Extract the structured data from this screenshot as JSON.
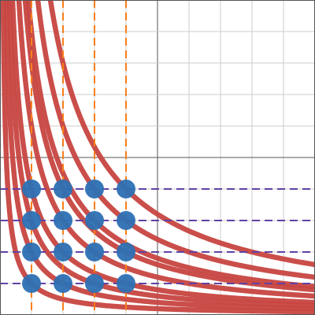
{
  "chart_data": {
    "type": "scatter",
    "xlim": [
      0,
      10
    ],
    "ylim": [
      0,
      10
    ],
    "xticks": [
      0,
      1,
      2,
      3,
      4,
      5,
      6,
      7,
      8,
      9,
      10
    ],
    "yticks": [
      0,
      1,
      2,
      3,
      4,
      5,
      6,
      7,
      8,
      9,
      10
    ],
    "major_ticks": [
      5
    ],
    "grid": true,
    "curves": {
      "type": "y = k / x",
      "color": "#c74440",
      "k": [
        1,
        2,
        3,
        4,
        6,
        8,
        9,
        12,
        16
      ]
    },
    "vertical_lines": {
      "color": "#fa7e19",
      "x": [
        1,
        2,
        3,
        4
      ]
    },
    "horizontal_lines": {
      "color": "#6042a6",
      "y": [
        1,
        2,
        3,
        4
      ]
    },
    "series": [
      {
        "color": "#2d70b3",
        "x": [
          1,
          2,
          3,
          4,
          1,
          2,
          3,
          4,
          1,
          2,
          3,
          4,
          1,
          2,
          3,
          4
        ],
        "values": [
          4,
          4,
          4,
          4,
          3,
          3,
          3,
          3,
          2,
          2,
          2,
          2,
          1,
          1,
          1,
          1
        ]
      }
    ]
  }
}
